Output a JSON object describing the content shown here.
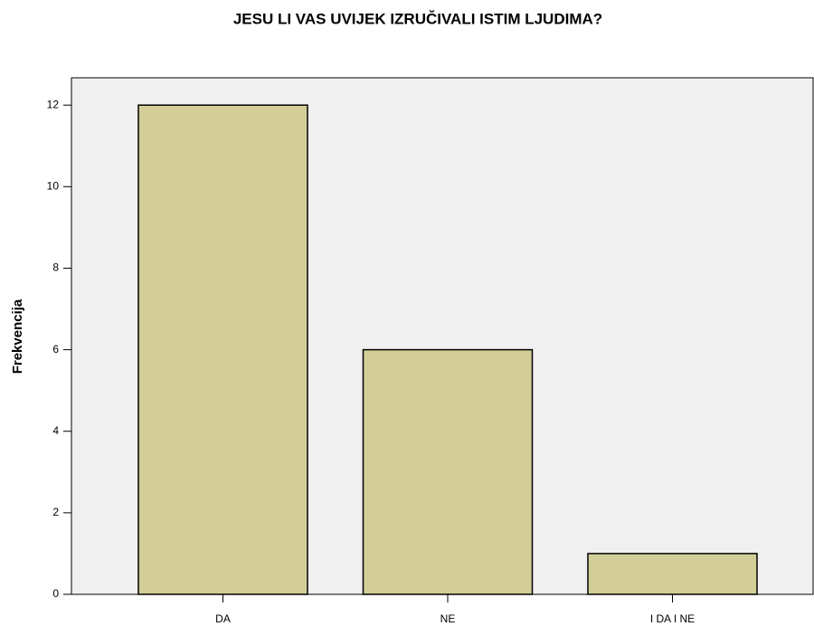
{
  "chart_data": {
    "type": "bar",
    "title": "JESU LI VAS UVIJEK IZRUČIVALI ISTIM LJUDIMA?",
    "y_label": "Frekvencija",
    "categories": [
      "DA",
      "NE",
      "I DA I NE"
    ],
    "values": [
      12,
      6,
      1
    ],
    "color": "#d3ce97",
    "ylim": [
      0,
      12.67
    ],
    "yticks": [
      0,
      2,
      4,
      6,
      8,
      10,
      12
    ],
    "grid": false
  }
}
